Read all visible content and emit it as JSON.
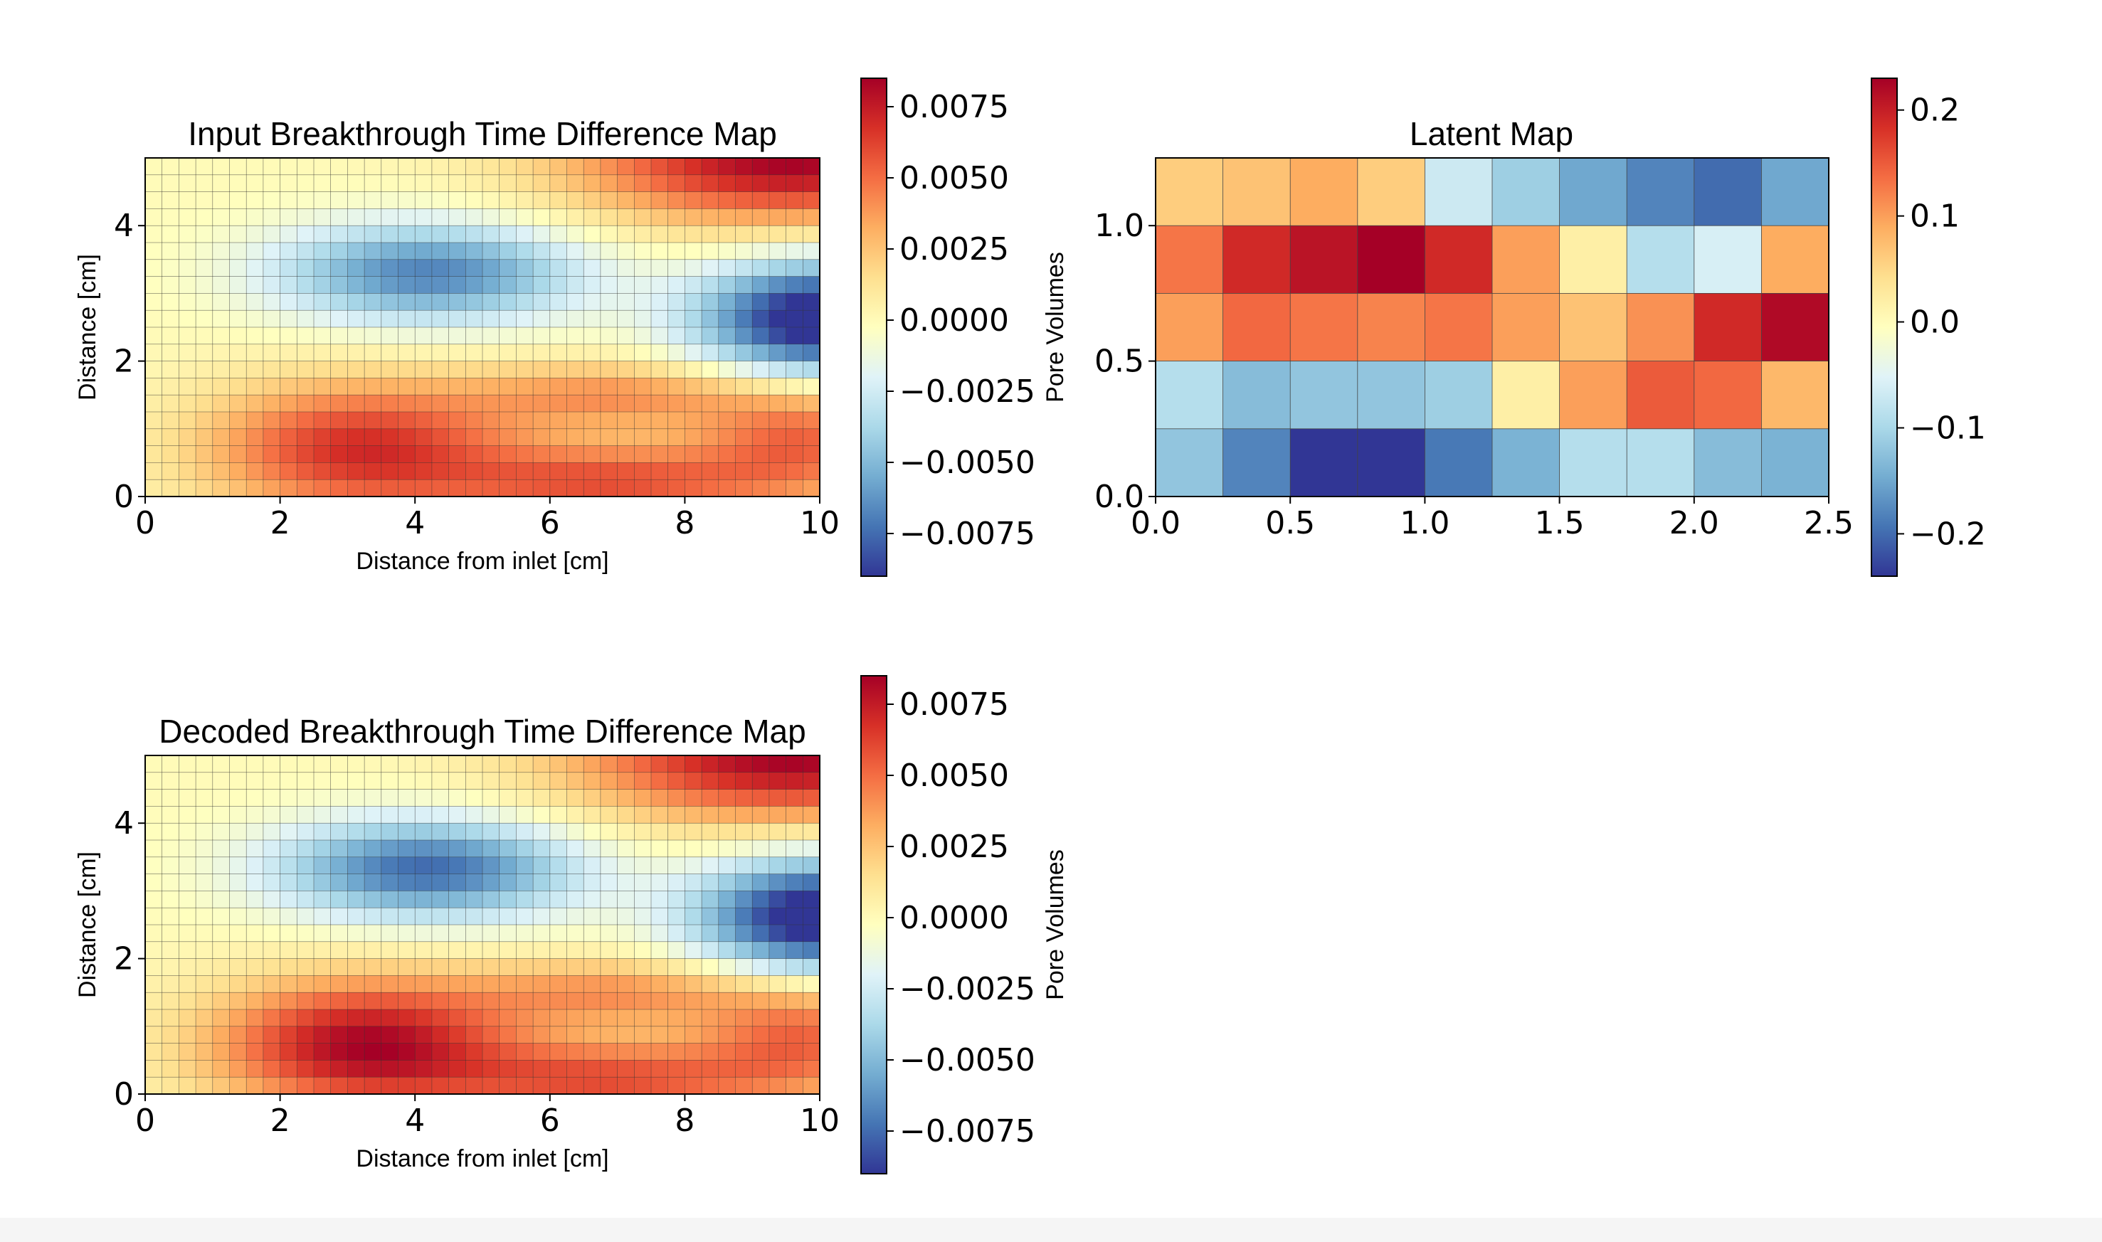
{
  "chart_data": [
    {
      "type": "heatmap",
      "title": "Input Breakthrough Time Difference Map",
      "xlabel": "Distance from inlet [cm]",
      "ylabel": "Distance [cm]",
      "xlim": [
        0,
        10
      ],
      "ylim": [
        0,
        5
      ],
      "xticks": [
        "0",
        "2",
        "4",
        "6",
        "8",
        "10"
      ],
      "yticks": [
        "0",
        "2",
        "4"
      ],
      "grid_cells": [
        40,
        20
      ],
      "colormap": "RdYlBu_r",
      "colorbar": {
        "label": "Pore Volumes",
        "range": [
          -0.009,
          0.0085
        ],
        "ticks": [
          "0.0075",
          "0.0050",
          "0.0025",
          "0.0000",
          "−0.0025",
          "−0.0050",
          "−0.0075"
        ]
      },
      "field": "input"
    },
    {
      "type": "heatmap",
      "title": "Latent Map",
      "xlabel": "",
      "ylabel": "",
      "xlim": [
        0,
        2.5
      ],
      "ylim": [
        0,
        1.25
      ],
      "xticks": [
        "0.0",
        "0.5",
        "1.0",
        "1.5",
        "2.0",
        "2.5"
      ],
      "yticks": [
        "0.0",
        "0.5",
        "1.0"
      ],
      "rows_top_to_bottom": [
        [
          0.06,
          0.07,
          0.09,
          0.06,
          -0.07,
          -0.11,
          -0.15,
          -0.18,
          -0.2,
          -0.15
        ],
        [
          0.13,
          0.19,
          0.21,
          0.23,
          0.19,
          0.1,
          0.02,
          -0.09,
          -0.06,
          0.09
        ],
        [
          0.1,
          0.14,
          0.13,
          0.12,
          0.13,
          0.1,
          0.07,
          0.11,
          0.19,
          0.22
        ],
        [
          -0.09,
          -0.13,
          -0.12,
          -0.12,
          -0.11,
          0.02,
          0.1,
          0.15,
          0.14,
          0.08
        ],
        [
          -0.12,
          -0.18,
          -0.24,
          -0.24,
          -0.19,
          -0.14,
          -0.09,
          -0.09,
          -0.13,
          -0.14
        ]
      ],
      "colormap": "RdYlBu_r",
      "colorbar": {
        "label": "",
        "range": [
          -0.24,
          0.23
        ],
        "ticks": [
          "0.2",
          "0.1",
          "0.0",
          "−0.1",
          "−0.2"
        ]
      }
    },
    {
      "type": "heatmap",
      "title": "Decoded Breakthrough Time Difference Map",
      "xlabel": "Distance from inlet [cm]",
      "ylabel": "Distance [cm]",
      "xlim": [
        0,
        10
      ],
      "ylim": [
        0,
        5
      ],
      "xticks": [
        "0",
        "2",
        "4",
        "6",
        "8",
        "10"
      ],
      "yticks": [
        "0",
        "2",
        "4"
      ],
      "grid_cells": [
        40,
        20
      ],
      "colormap": "RdYlBu_r",
      "colorbar": {
        "label": "Pore Volumes",
        "range": [
          -0.009,
          0.0085
        ],
        "ticks": [
          "0.0075",
          "0.0050",
          "0.0025",
          "0.0000",
          "−0.0025",
          "−0.0050",
          "−0.0075"
        ]
      },
      "field": "decoded"
    }
  ]
}
